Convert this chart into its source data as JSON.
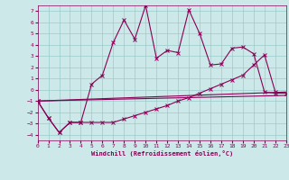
{
  "xlabel": "Windchill (Refroidissement éolien,°C)",
  "bg_color": "#cce8e8",
  "line_color": "#880055",
  "grid_color": "#99cccc",
  "xlim": [
    0,
    23
  ],
  "ylim": [
    -4.5,
    7.5
  ],
  "xticks": [
    0,
    1,
    2,
    3,
    4,
    5,
    6,
    7,
    8,
    9,
    10,
    11,
    12,
    13,
    14,
    15,
    16,
    17,
    18,
    19,
    20,
    21,
    22,
    23
  ],
  "yticks": [
    -4,
    -3,
    -2,
    -1,
    0,
    1,
    2,
    3,
    4,
    5,
    6,
    7
  ],
  "curve1_x": [
    0,
    1,
    2,
    3,
    4,
    5,
    6,
    7,
    8,
    9,
    10,
    11,
    12,
    13,
    14,
    15,
    16,
    17,
    18,
    19,
    20,
    21,
    22,
    23
  ],
  "curve1_y": [
    -1.0,
    -2.5,
    -3.8,
    -2.9,
    -2.9,
    0.5,
    1.3,
    4.2,
    6.2,
    4.5,
    7.5,
    2.8,
    3.5,
    3.3,
    7.1,
    5.0,
    2.2,
    2.3,
    3.7,
    3.8,
    3.2,
    -0.2,
    -0.3,
    -0.3
  ],
  "curve2_x": [
    0,
    1,
    2,
    3,
    4,
    5,
    6,
    7,
    8,
    9,
    10,
    11,
    12,
    13,
    14,
    15,
    16,
    17,
    18,
    19,
    20,
    21,
    22,
    23
  ],
  "curve2_y": [
    -1.0,
    -2.5,
    -3.8,
    -2.9,
    -2.9,
    -2.9,
    -2.9,
    -2.9,
    -2.6,
    -2.3,
    -2.0,
    -1.7,
    -1.4,
    -1.0,
    -0.7,
    -0.3,
    0.1,
    0.5,
    0.9,
    1.3,
    2.2,
    3.1,
    -0.2,
    -0.3
  ],
  "line1_x": [
    0,
    23
  ],
  "line1_y": [
    -1.0,
    -0.2
  ],
  "line2_x": [
    0,
    23
  ],
  "line2_y": [
    -1.0,
    -0.5
  ]
}
